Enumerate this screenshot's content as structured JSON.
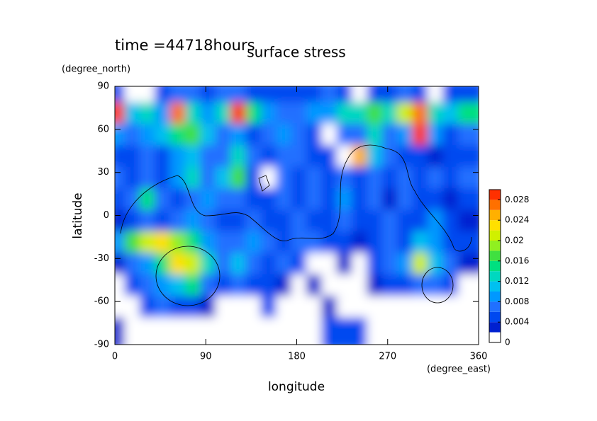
{
  "chart_data": {
    "type": "heatmap",
    "time_label": "time =44718hours",
    "title": "surface stress",
    "x_label": "longitude",
    "x_units": "(degree_east)",
    "y_label": "latitude",
    "y_units": "(degree_north)",
    "xlim": [
      0,
      360
    ],
    "xticks": [
      0,
      90,
      180,
      270,
      360
    ],
    "ylim": [
      -90,
      90
    ],
    "yticks": [
      -90,
      -60,
      -30,
      0,
      30,
      60,
      90
    ],
    "x": [
      7.5,
      22.5,
      37.5,
      52.5,
      67.5,
      82.5,
      97.5,
      112.5,
      127.5,
      142.5,
      157.5,
      172.5,
      187.5,
      202.5,
      217.5,
      232.5,
      247.5,
      262.5,
      277.5,
      292.5,
      307.5,
      322.5,
      337.5,
      352.5
    ],
    "y": [
      82.5,
      67.5,
      52.5,
      37.5,
      22.5,
      7.5,
      -7.5,
      -22.5,
      -37.5,
      -52.5,
      -67.5,
      -82.5
    ],
    "values": [
      [
        0.004,
        0,
        0,
        0.004,
        0.006,
        0.006,
        0.004,
        0.006,
        0.006,
        0.004,
        0.004,
        0.004,
        0.004,
        0.004,
        0.006,
        0.004,
        0,
        0.004,
        0.004,
        0.006,
        0.004,
        0,
        0.004,
        0.004
      ],
      [
        0.028,
        0.01,
        0.012,
        0.008,
        0.026,
        0.012,
        0.008,
        0.012,
        0.03,
        0.014,
        0.008,
        0.006,
        0.006,
        0.008,
        0.008,
        0.012,
        0.012,
        0.016,
        0.012,
        0.02,
        0.026,
        0.012,
        0.01,
        0.014
      ],
      [
        0.008,
        0.006,
        0.008,
        0.01,
        0.014,
        0.016,
        0.01,
        0.006,
        0.008,
        0.004,
        0.006,
        0.008,
        0.006,
        0.004,
        0,
        0.006,
        0.006,
        0.012,
        0.006,
        0.008,
        0.028,
        0.008,
        0.004,
        0.006
      ],
      [
        0.004,
        0.004,
        0.006,
        0.004,
        0.008,
        0.01,
        0.006,
        0.006,
        0.012,
        0.006,
        0.004,
        0.006,
        0.006,
        0.004,
        0.004,
        0,
        0.024,
        0.01,
        0.006,
        0.004,
        0.004,
        0.002,
        0.004,
        0.004
      ],
      [
        0.006,
        0.004,
        0.006,
        0.004,
        0.008,
        0.012,
        0.006,
        0.01,
        0.016,
        0.004,
        0,
        0.006,
        0.004,
        0.006,
        0.004,
        0.006,
        0.004,
        0.006,
        0.004,
        0.006,
        0.004,
        0.006,
        0.004,
        0.006
      ],
      [
        0.004,
        0.006,
        0.014,
        0.006,
        0.004,
        0.006,
        0.008,
        0.006,
        0.006,
        0.004,
        0.004,
        0.006,
        0.004,
        0.006,
        0.004,
        0.008,
        0.004,
        0.006,
        0.002,
        0.006,
        0.004,
        0.004,
        0.002,
        0.004
      ],
      [
        0.002,
        0.004,
        0.006,
        0.004,
        0.006,
        0.008,
        0.006,
        0.004,
        0.004,
        0.006,
        0.004,
        0.004,
        0.006,
        0.004,
        0.004,
        0.006,
        0.004,
        0.004,
        0.006,
        0.004,
        0.004,
        0.008,
        0.004,
        0.002
      ],
      [
        0.008,
        0.016,
        0.02,
        0.022,
        0.018,
        0.014,
        0.008,
        0.006,
        0.006,
        0.008,
        0.006,
        0.004,
        0.006,
        0.006,
        0.004,
        0.004,
        0.002,
        0.004,
        0.006,
        0.004,
        0.01,
        0.008,
        0.004,
        0.004
      ],
      [
        0.002,
        0.006,
        0.008,
        0.014,
        0.022,
        0.02,
        0.012,
        0.006,
        0.01,
        0.006,
        0.004,
        0.006,
        0.004,
        0,
        0,
        0.002,
        0,
        0.004,
        0.006,
        0.008,
        0.02,
        0.01,
        0.006,
        0.002
      ],
      [
        0,
        0.004,
        0.006,
        0.008,
        0.01,
        0.014,
        0.006,
        0.004,
        0.006,
        0.004,
        0.004,
        0.002,
        0,
        0.002,
        0,
        0,
        0,
        0.002,
        0.004,
        0.004,
        0.006,
        0.006,
        0.004,
        0
      ],
      [
        0,
        0,
        0.004,
        0.006,
        0.004,
        0.004,
        0.002,
        0,
        0,
        0,
        0.004,
        0,
        0,
        0,
        0.002,
        0,
        0,
        0,
        0,
        0,
        0,
        0,
        0,
        0
      ],
      [
        0.002,
        0,
        0,
        0,
        0,
        0,
        0,
        0,
        0,
        0,
        0,
        0,
        0,
        0,
        0.004,
        0.004,
        0.004,
        0,
        0,
        0,
        0,
        0,
        0,
        0
      ]
    ],
    "clim": [
      0,
      0.03
    ],
    "cticks": [
      0,
      0.004,
      0.008,
      0.012,
      0.016,
      0.02,
      0.024,
      0.028
    ],
    "colors": [
      "#ffffff",
      "#0020d0",
      "#0048f0",
      "#2070ff",
      "#0098ff",
      "#00c0f0",
      "#00d8c0",
      "#00e080",
      "#40e040",
      "#90f020",
      "#d0f000",
      "#ffe000",
      "#ffb000",
      "#ff7000",
      "#ff3000"
    ]
  }
}
